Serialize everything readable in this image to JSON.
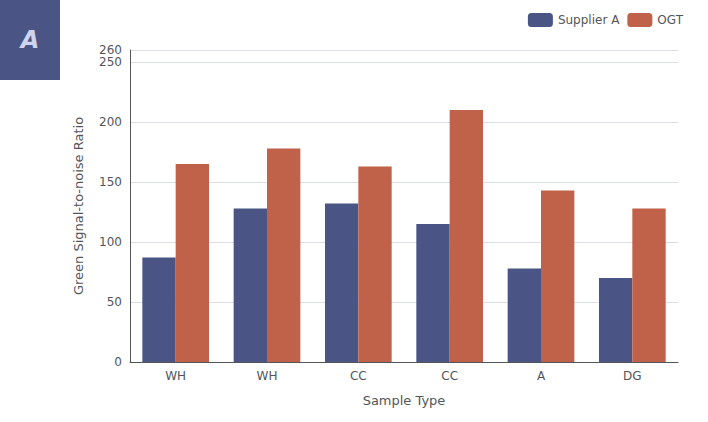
{
  "chart_data": {
    "type": "bar",
    "categories": [
      "WH",
      "WH",
      "CC",
      "CC",
      "A",
      "DG"
    ],
    "series": [
      {
        "name": "Supplier A",
        "color": "#4a5485",
        "values": [
          87,
          128,
          132,
          115,
          78,
          70
        ]
      },
      {
        "name": "OGT",
        "color": "#c0614a",
        "values": [
          165,
          178,
          163,
          210,
          143,
          128
        ]
      }
    ],
    "xlabel": "Sample Type",
    "ylabel": "Green Signal-to-noise Ratio",
    "annotations": [
      "A"
    ],
    "ylim": [
      0,
      260
    ],
    "yticks": [
      0,
      50,
      100,
      150,
      200,
      250
    ],
    "grid": true,
    "legend": "upper right"
  }
}
